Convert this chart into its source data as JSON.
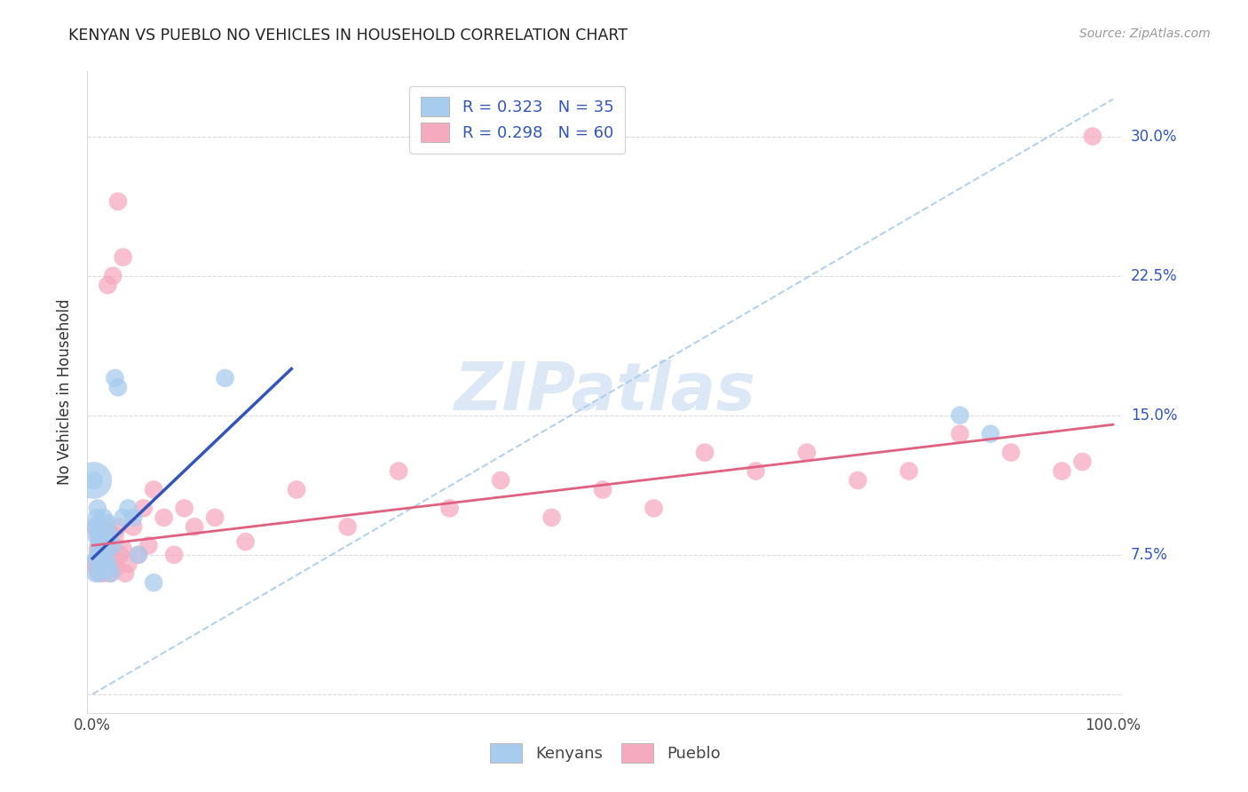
{
  "title": "KENYAN VS PUEBLO NO VEHICLES IN HOUSEHOLD CORRELATION CHART",
  "source": "Source: ZipAtlas.com",
  "ylabel": "No Vehicles in Household",
  "kenyan_R": 0.323,
  "kenyan_N": 35,
  "pueblo_R": 0.298,
  "pueblo_N": 60,
  "kenyan_color": "#A8CCEE",
  "pueblo_color": "#F5AABF",
  "kenyan_line_color": "#3355BB",
  "pueblo_line_color": "#E06080",
  "diagonal_color": "#AACCEE",
  "grid_color": "#CCCCCC",
  "title_color": "#222222",
  "source_color": "#999999",
  "tick_color": "#3355BB",
  "watermark_color": "#DCE8F5",
  "bg_color": "#FFFFFF",
  "xlim": [
    -0.005,
    1.01
  ],
  "ylim": [
    -0.01,
    0.335
  ],
  "x_ticks": [
    0.0,
    0.2,
    0.4,
    0.6,
    0.8,
    1.0
  ],
  "y_ticks": [
    0.0,
    0.075,
    0.15,
    0.225,
    0.3
  ],
  "y_right_labels": [
    "",
    "7.5%",
    "15.0%",
    "22.5%",
    "30.0%"
  ],
  "kenyan_x": [
    0.001,
    0.002,
    0.003,
    0.003,
    0.004,
    0.004,
    0.005,
    0.005,
    0.006,
    0.006,
    0.007,
    0.007,
    0.008,
    0.008,
    0.009,
    0.01,
    0.011,
    0.012,
    0.013,
    0.014,
    0.015,
    0.016,
    0.017,
    0.018,
    0.02,
    0.022,
    0.025,
    0.03,
    0.035,
    0.04,
    0.045,
    0.06,
    0.13,
    0.85,
    0.88
  ],
  "kenyan_y": [
    0.115,
    0.09,
    0.065,
    0.072,
    0.085,
    0.095,
    0.075,
    0.1,
    0.08,
    0.092,
    0.065,
    0.085,
    0.07,
    0.09,
    0.075,
    0.082,
    0.095,
    0.078,
    0.088,
    0.072,
    0.092,
    0.068,
    0.085,
    0.065,
    0.08,
    0.17,
    0.165,
    0.095,
    0.1,
    0.095,
    0.075,
    0.06,
    0.17,
    0.15,
    0.14
  ],
  "pueblo_x": [
    0.002,
    0.003,
    0.004,
    0.005,
    0.006,
    0.006,
    0.007,
    0.008,
    0.008,
    0.009,
    0.01,
    0.011,
    0.012,
    0.013,
    0.014,
    0.015,
    0.016,
    0.017,
    0.018,
    0.02,
    0.022,
    0.023,
    0.025,
    0.027,
    0.03,
    0.032,
    0.035,
    0.04,
    0.045,
    0.05,
    0.055,
    0.06,
    0.07,
    0.08,
    0.09,
    0.1,
    0.12,
    0.15,
    0.2,
    0.25,
    0.3,
    0.35,
    0.4,
    0.45,
    0.5,
    0.55,
    0.6,
    0.65,
    0.7,
    0.75,
    0.8,
    0.85,
    0.9,
    0.95,
    0.97,
    0.98,
    0.025,
    0.03,
    0.02,
    0.015
  ],
  "pueblo_y": [
    0.07,
    0.09,
    0.068,
    0.078,
    0.065,
    0.085,
    0.075,
    0.068,
    0.09,
    0.072,
    0.08,
    0.065,
    0.085,
    0.075,
    0.068,
    0.09,
    0.078,
    0.065,
    0.08,
    0.072,
    0.085,
    0.068,
    0.09,
    0.075,
    0.078,
    0.065,
    0.07,
    0.09,
    0.075,
    0.1,
    0.08,
    0.11,
    0.095,
    0.075,
    0.1,
    0.09,
    0.095,
    0.082,
    0.11,
    0.09,
    0.12,
    0.1,
    0.115,
    0.095,
    0.11,
    0.1,
    0.13,
    0.12,
    0.13,
    0.115,
    0.12,
    0.14,
    0.13,
    0.12,
    0.125,
    0.3,
    0.265,
    0.235,
    0.225,
    0.22
  ],
  "kenyan_line_x": [
    0.0,
    0.195
  ],
  "kenyan_line_y": [
    0.073,
    0.175
  ],
  "pueblo_line_x": [
    0.0,
    1.0
  ],
  "pueblo_line_y": [
    0.08,
    0.145
  ]
}
